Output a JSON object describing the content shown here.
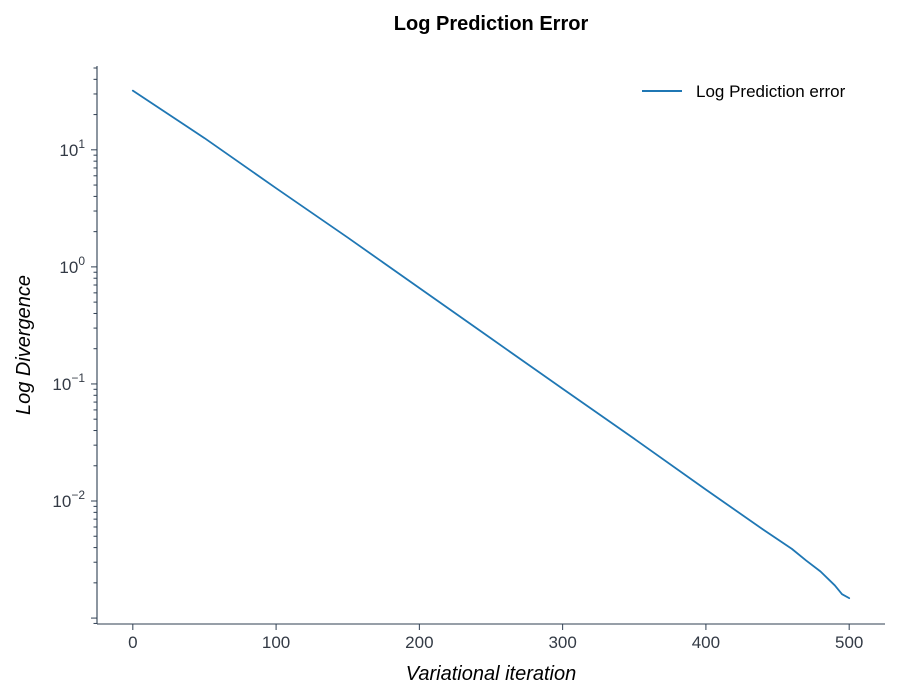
{
  "chart_data": {
    "type": "line",
    "title": "Log Prediction Error",
    "xlabel": "Variational iteration",
    "ylabel": "Log Divergence",
    "xlim": [
      -25,
      525
    ],
    "ylim": [
      0.00089,
      52
    ],
    "yscale": "log",
    "grid": false,
    "legend_position": "top-right",
    "x_ticks": [
      0,
      100,
      200,
      300,
      400,
      500
    ],
    "x_tick_labels": [
      "0",
      "100",
      "200",
      "300",
      "400",
      "500"
    ],
    "y_ticks": [
      0.01,
      0.1,
      1,
      10
    ],
    "y_tick_labels": [
      {
        "base": "10",
        "exp": "−2"
      },
      {
        "base": "10",
        "exp": "−1"
      },
      {
        "base": "10",
        "exp": "0"
      },
      {
        "base": "10",
        "exp": "1"
      }
    ],
    "series": [
      {
        "name": "Log Prediction error",
        "color": "#1f77b4",
        "x": [
          0,
          50,
          100,
          150,
          200,
          250,
          300,
          350,
          400,
          440,
          460,
          470,
          480,
          490,
          495,
          500
        ],
        "y": [
          32,
          12.6,
          4.7,
          1.78,
          0.66,
          0.245,
          0.091,
          0.034,
          0.0125,
          0.0057,
          0.0039,
          0.0031,
          0.0025,
          0.0019,
          0.0016,
          0.00148
        ]
      }
    ]
  }
}
